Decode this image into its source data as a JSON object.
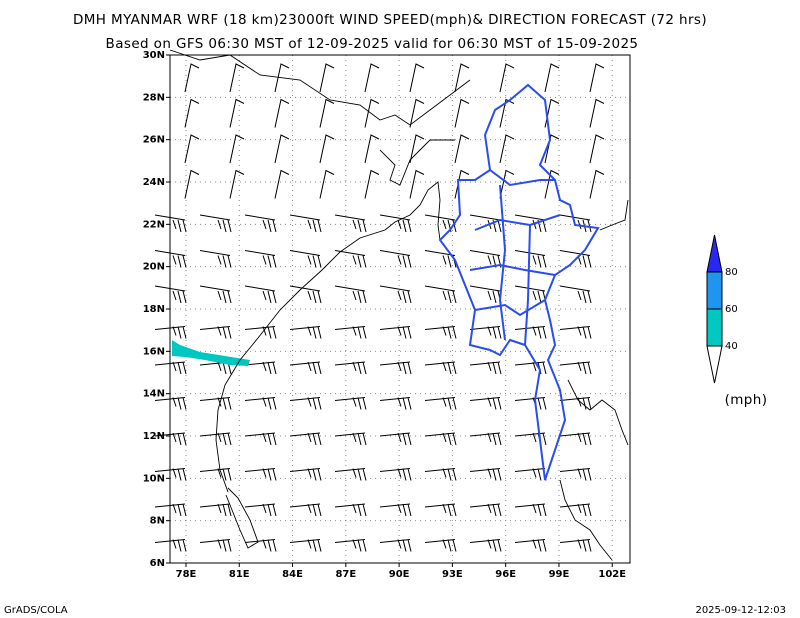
{
  "title": "DMH MYANMAR WRF (18 km)23000ft WIND SPEED(mph)& DIRECTION FORECAST (72 hrs)",
  "subtitle": "Based on GFS 06:30 MST of 12-09-2025 valid for 06:30 MST of 15-09-2025",
  "map": {
    "lonlim": [
      77.1,
      103
    ],
    "latlim": [
      6,
      30
    ],
    "lat_ticks": [
      {
        "value": 30,
        "label": "30N"
      },
      {
        "value": 28,
        "label": "28N"
      },
      {
        "value": 26,
        "label": "26N"
      },
      {
        "value": 24,
        "label": "24N"
      },
      {
        "value": 22,
        "label": "22N"
      },
      {
        "value": 20,
        "label": "20N"
      },
      {
        "value": 18,
        "label": "18N"
      },
      {
        "value": 16,
        "label": "16N"
      },
      {
        "value": 14,
        "label": "14N"
      },
      {
        "value": 12,
        "label": "12N"
      },
      {
        "value": 10,
        "label": "10N"
      },
      {
        "value": 8,
        "label": "8N"
      },
      {
        "value": 6,
        "label": "6N"
      }
    ],
    "lon_ticks": [
      {
        "value": 78,
        "label": "78E"
      },
      {
        "value": 81,
        "label": "81E"
      },
      {
        "value": 84,
        "label": "84E"
      },
      {
        "value": 87,
        "label": "87E"
      },
      {
        "value": 90,
        "label": "90E"
      },
      {
        "value": 93,
        "label": "93E"
      },
      {
        "value": 96,
        "label": "96E"
      },
      {
        "value": 99,
        "label": "99E"
      },
      {
        "value": 102,
        "label": "102E"
      }
    ]
  },
  "legend": {
    "levels": [
      40,
      60,
      80
    ],
    "colors": [
      "#00c8c0",
      "#1e96f0",
      "#2828f0"
    ],
    "unit": "(mph)"
  },
  "footer_left": "GrADS/COLA",
  "footer_right": "2025-09-12-12:03"
}
